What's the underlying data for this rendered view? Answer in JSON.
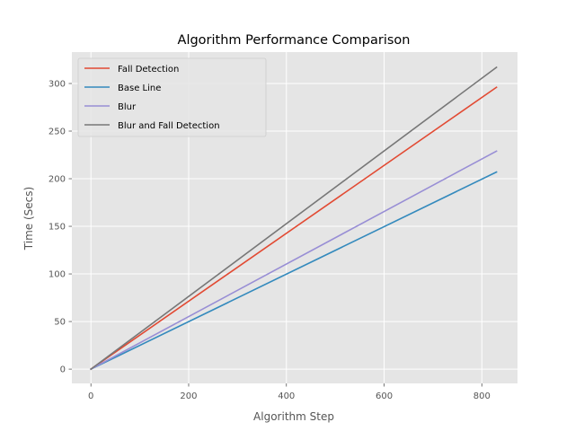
{
  "chart_data": {
    "type": "line",
    "title": "Algorithm Performance Comparison",
    "xlabel": "Algorithm Step",
    "ylabel": "Time (Secs)",
    "xlim": [
      -39,
      873
    ],
    "ylim": [
      -15,
      333
    ],
    "xticks": [
      0,
      200,
      400,
      600,
      800
    ],
    "yticks": [
      0,
      50,
      100,
      150,
      200,
      250,
      300
    ],
    "grid": true,
    "legend_position": "top-left",
    "background": "#e5e5e5",
    "series": [
      {
        "name": "Fall Detection",
        "color": "#e24a33",
        "x": [
          0,
          830
        ],
        "y": [
          0,
          296
        ]
      },
      {
        "name": "Base Line",
        "color": "#348abd",
        "x": [
          0,
          830
        ],
        "y": [
          0,
          207
        ]
      },
      {
        "name": "Blur",
        "color": "#988ed5",
        "x": [
          0,
          830
        ],
        "y": [
          0,
          229
        ]
      },
      {
        "name": "Blur and Fall Detection",
        "color": "#777777",
        "x": [
          0,
          830
        ],
        "y": [
          0,
          317
        ]
      }
    ]
  }
}
